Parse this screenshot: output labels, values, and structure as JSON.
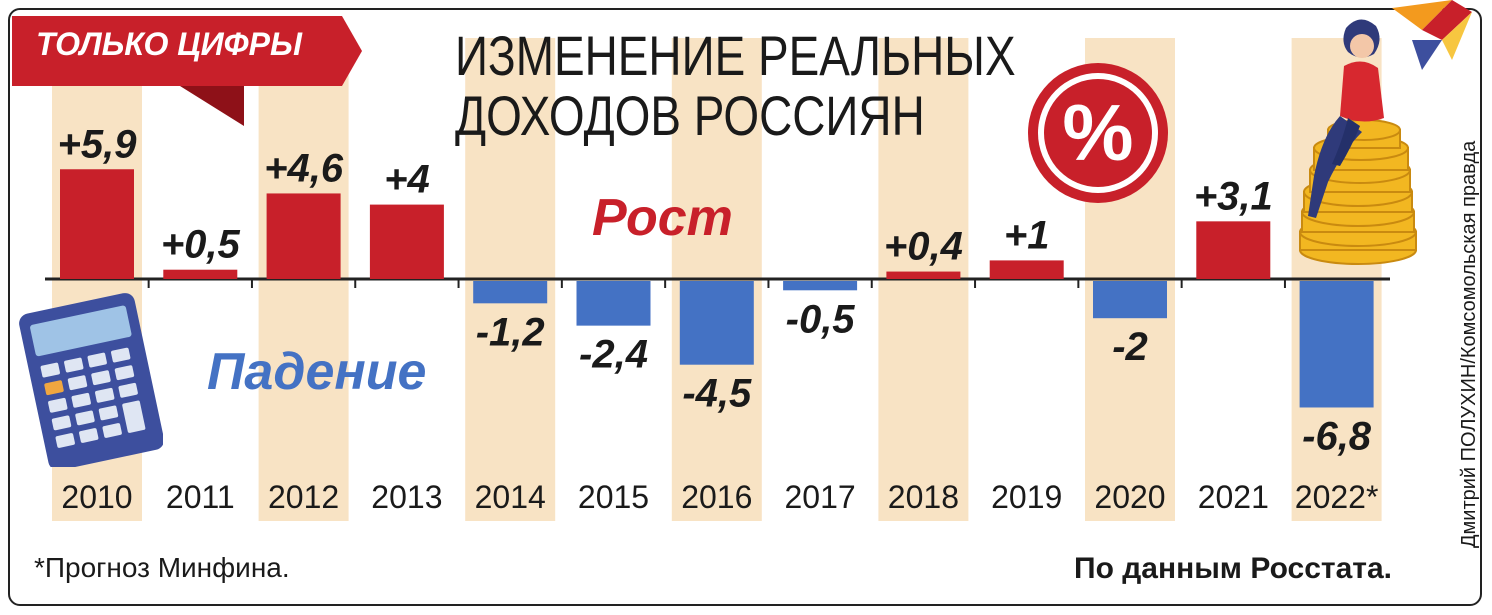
{
  "banner": {
    "text": "ТОЛЬКО ЦИФРЫ"
  },
  "title": {
    "line1": "ИЗМЕНЕНИЕ РЕАЛЬНЫХ",
    "line2": "ДОХОДОВ РОССИЯН"
  },
  "labels": {
    "growth": "Рост",
    "fall": "Падение",
    "percent_symbol": "%"
  },
  "footnote": "*Прогноз Минфина.",
  "source": "По данным Росстата.",
  "credit": "Дмитрий ПОЛУХИН/Комсомольская правда",
  "colors": {
    "positive": "#c8202a",
    "negative": "#4472c4",
    "highlight_band": "#f8e3c4",
    "banner": "#c8202a"
  },
  "chart_data": {
    "type": "bar",
    "categories": [
      "2010",
      "2011",
      "2012",
      "2013",
      "2014",
      "2015",
      "2016",
      "2017",
      "2018",
      "2019",
      "2020",
      "2021",
      "2022*"
    ],
    "values": [
      5.9,
      0.5,
      4.6,
      4,
      -1.2,
      -2.4,
      -4.5,
      -0.5,
      0.4,
      1,
      -2,
      3.1,
      -6.8
    ],
    "value_labels": [
      "+5,9",
      "+0,5",
      "+4,6",
      "+4",
      "-1,2",
      "-2,4",
      "-4,5",
      "-0,5",
      "+0,4",
      "+1",
      "-2",
      "+3,1",
      "-6,8"
    ],
    "highlighted_categories": [
      "2010",
      "2012",
      "2014",
      "2016",
      "2018",
      "2020",
      "2022*"
    ],
    "title": "ИЗМЕНЕНИЕ РЕАЛЬНЫХ ДОХОДОВ РОССИЯН",
    "xlabel": "",
    "ylabel": "",
    "unit": "%",
    "ylim": [
      -6.8,
      5.9
    ],
    "grid": false,
    "legend": "none"
  }
}
